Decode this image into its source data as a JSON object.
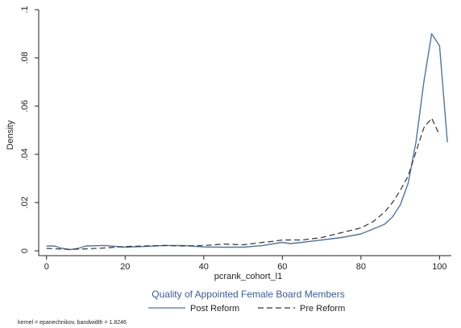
{
  "chart_data": {
    "type": "line",
    "title": "Quality of Appointed Female Board Members",
    "xlabel": "pcrank_cohort_l1",
    "ylabel": "Density",
    "xlim": [
      -2,
      103
    ],
    "ylim": [
      -0.002,
      0.1
    ],
    "x_ticks": [
      0,
      20,
      40,
      60,
      80,
      100
    ],
    "y_ticks": [
      0,
      0.02,
      0.04,
      0.06,
      0.08,
      0.1
    ],
    "x_tick_labels": [
      "0",
      "20",
      "40",
      "60",
      "80",
      "100"
    ],
    "y_tick_labels": [
      "0",
      ".02",
      ".04",
      ".06",
      ".08",
      ".1"
    ],
    "grid": false,
    "legend_position": "bottom",
    "series": [
      {
        "name": "Post Reform",
        "color": "#4f74a8",
        "dash": "solid",
        "x": [
          0,
          2,
          4,
          6,
          8,
          10,
          15,
          20,
          25,
          30,
          35,
          40,
          45,
          50,
          55,
          58,
          60,
          62,
          65,
          70,
          75,
          80,
          83,
          86,
          88,
          90,
          92,
          94,
          96,
          98,
          100,
          102
        ],
        "y": [
          0.002,
          0.002,
          0.001,
          0.0005,
          0.001,
          0.002,
          0.0022,
          0.0015,
          0.0018,
          0.0022,
          0.0022,
          0.0016,
          0.0015,
          0.0015,
          0.0022,
          0.003,
          0.0035,
          0.003,
          0.0035,
          0.0045,
          0.0055,
          0.007,
          0.009,
          0.011,
          0.014,
          0.019,
          0.028,
          0.045,
          0.07,
          0.09,
          0.085,
          0.045
        ]
      },
      {
        "name": "Pre Reform",
        "color": "#333333",
        "dash": "dashed",
        "x": [
          0,
          3,
          6,
          10,
          15,
          20,
          25,
          30,
          35,
          40,
          45,
          50,
          55,
          58,
          60,
          62,
          65,
          70,
          75,
          80,
          83,
          86,
          88,
          90,
          92,
          94,
          96,
          98,
          100
        ],
        "y": [
          0.001,
          0.0008,
          0.0006,
          0.0008,
          0.0012,
          0.0018,
          0.002,
          0.0022,
          0.002,
          0.0022,
          0.0028,
          0.0025,
          0.0035,
          0.004,
          0.0045,
          0.0045,
          0.0045,
          0.0055,
          0.0075,
          0.0095,
          0.012,
          0.016,
          0.02,
          0.025,
          0.031,
          0.041,
          0.051,
          0.055,
          0.048
        ]
      }
    ],
    "legend": [
      {
        "label": "Post Reform",
        "color": "#4f74a8",
        "dash": "solid"
      },
      {
        "label": "Pre Reform",
        "color": "#333333",
        "dash": "dashed"
      }
    ],
    "note": "kernel = epanechnikov, bandwidth = 1.8246"
  }
}
